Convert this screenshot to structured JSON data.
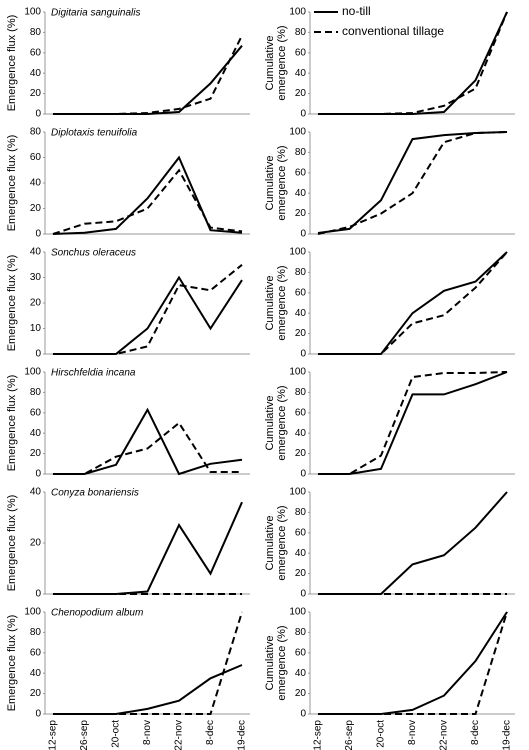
{
  "chart_data": [
    {
      "type": "line",
      "title": "Digitaria sanguinalis",
      "ylabel": [
        "Emergence flux (%)"
      ],
      "ylim": [
        0,
        100
      ],
      "yticks": [
        0,
        20,
        40,
        60,
        80,
        100
      ],
      "series": [
        {
          "style": "solid",
          "color": "#000000",
          "values": [
            0,
            0,
            0,
            0,
            2,
            30,
            67
          ]
        },
        {
          "style": "dashed",
          "color": "#000000",
          "values": [
            0,
            0,
            0,
            1,
            5,
            15,
            77
          ]
        }
      ]
    },
    {
      "type": "line",
      "ylabel": [
        "Cumulative",
        "emergence (%)"
      ],
      "ylim": [
        0,
        100
      ],
      "yticks": [
        0,
        20,
        40,
        60,
        80,
        100
      ],
      "legend": "top-left",
      "series": [
        {
          "name": "no-till",
          "style": "solid",
          "color": "#000000",
          "values": [
            0,
            0,
            0,
            0,
            2,
            33,
            100
          ]
        },
        {
          "name": "conventional tillage",
          "style": "dashed",
          "color": "#000000",
          "values": [
            0,
            0,
            0,
            1,
            8,
            25,
            100
          ]
        }
      ]
    },
    {
      "type": "line",
      "title": "Diplotaxis tenuifolia",
      "ylabel": [
        "Emergence flux (%)"
      ],
      "ylim": [
        0,
        80
      ],
      "yticks": [
        0,
        20,
        40,
        60,
        80
      ],
      "series": [
        {
          "style": "solid",
          "color": "#000000",
          "values": [
            0,
            1,
            4,
            28,
            60,
            3,
            1
          ]
        },
        {
          "style": "dashed",
          "color": "#000000",
          "values": [
            0,
            8,
            10,
            20,
            50,
            5,
            2
          ]
        }
      ]
    },
    {
      "type": "line",
      "ylabel": [
        "Cumulative",
        "emergence (%)"
      ],
      "ylim": [
        0,
        100
      ],
      "yticks": [
        0,
        20,
        40,
        60,
        80,
        100
      ],
      "series": [
        {
          "style": "solid",
          "color": "#000000",
          "values": [
            1,
            5,
            33,
            93,
            97,
            99,
            100
          ]
        },
        {
          "style": "dashed",
          "color": "#000000",
          "values": [
            0,
            7,
            20,
            40,
            90,
            99,
            100
          ]
        }
      ]
    },
    {
      "type": "line",
      "title": "Sonchus oleraceus",
      "ylabel": [
        "Emergence flux (%)"
      ],
      "ylim": [
        0,
        40
      ],
      "yticks": [
        0,
        10,
        20,
        30,
        40
      ],
      "series": [
        {
          "style": "solid",
          "color": "#000000",
          "values": [
            0,
            0,
            0,
            10,
            30,
            10,
            29
          ]
        },
        {
          "style": "dashed",
          "color": "#000000",
          "values": [
            0,
            0,
            0,
            3,
            27,
            25,
            35
          ]
        }
      ]
    },
    {
      "type": "line",
      "ylabel": [
        "Cumulative",
        "emergence (%)"
      ],
      "ylim": [
        0,
        100
      ],
      "yticks": [
        0,
        20,
        40,
        60,
        80,
        100
      ],
      "series": [
        {
          "style": "solid",
          "color": "#000000",
          "values": [
            0,
            0,
            0,
            40,
            62,
            71,
            100
          ]
        },
        {
          "style": "dashed",
          "color": "#000000",
          "values": [
            0,
            0,
            0,
            30,
            38,
            65,
            100
          ]
        }
      ]
    },
    {
      "type": "line",
      "title": "Hirschfeldia incana",
      "ylabel": [
        "Emergence flux (%)"
      ],
      "ylim": [
        0,
        100
      ],
      "yticks": [
        0,
        20,
        40,
        60,
        80,
        100
      ],
      "series": [
        {
          "style": "solid",
          "color": "#000000",
          "values": [
            0,
            0,
            9,
            63,
            0,
            10,
            14
          ]
        },
        {
          "style": "dashed",
          "color": "#000000",
          "values": [
            0,
            0,
            17,
            25,
            50,
            2,
            2
          ]
        }
      ]
    },
    {
      "type": "line",
      "ylabel": [
        "Cumulative",
        "emergence (%)"
      ],
      "ylim": [
        0,
        100
      ],
      "yticks": [
        0,
        20,
        40,
        60,
        80,
        100
      ],
      "series": [
        {
          "style": "solid",
          "color": "#000000",
          "values": [
            0,
            0,
            5,
            78,
            78,
            88,
            100
          ]
        },
        {
          "style": "dashed",
          "color": "#000000",
          "values": [
            0,
            0,
            18,
            95,
            99,
            99,
            100
          ]
        }
      ]
    },
    {
      "type": "line",
      "title": "Conyza bonariensis",
      "ylabel": [
        "Emergence flux (%)"
      ],
      "ylim": [
        0,
        40
      ],
      "yticks": [
        0,
        20,
        40
      ],
      "series": [
        {
          "style": "solid",
          "color": "#000000",
          "values": [
            0,
            0,
            0,
            1,
            27,
            8,
            36
          ]
        },
        {
          "style": "dashed",
          "color": "#000000",
          "values": [
            0,
            0,
            0,
            0,
            0,
            0,
            0
          ]
        }
      ]
    },
    {
      "type": "line",
      "ylabel": [
        "Cumulative",
        "emergence (%)"
      ],
      "ylim": [
        0,
        100
      ],
      "yticks": [
        0,
        20,
        40,
        60,
        80,
        100
      ],
      "series": [
        {
          "style": "solid",
          "color": "#000000",
          "values": [
            0,
            0,
            0,
            29,
            38,
            65,
            100
          ]
        },
        {
          "style": "dashed",
          "color": "#000000",
          "values": [
            0,
            0,
            0,
            0,
            0,
            0,
            0
          ]
        }
      ]
    },
    {
      "type": "line",
      "title": "Chenopodium album",
      "ylabel": [
        "Emergence flux (%)"
      ],
      "ylim": [
        0,
        100
      ],
      "yticks": [
        0,
        20,
        40,
        60,
        80,
        100
      ],
      "categories": [
        "12-sep",
        "26-sep",
        "20-oct",
        "8-nov",
        "22-nov",
        "8-dec",
        "19-dec"
      ],
      "series": [
        {
          "style": "solid",
          "color": "#000000",
          "values": [
            0,
            0,
            0,
            5,
            13,
            35,
            48
          ]
        },
        {
          "style": "dashed",
          "color": "#000000",
          "values": [
            0,
            0,
            0,
            0,
            0,
            0,
            100
          ]
        }
      ]
    },
    {
      "type": "line",
      "ylabel": [
        "Cumulative",
        "emergence (%)"
      ],
      "ylim": [
        0,
        100
      ],
      "yticks": [
        0,
        20,
        40,
        60,
        80,
        100
      ],
      "categories": [
        "12-sep",
        "26-sep",
        "20-oct",
        "8-nov",
        "22-nov",
        "8-dec",
        "19-dec"
      ],
      "series": [
        {
          "style": "solid",
          "color": "#000000",
          "values": [
            0,
            0,
            0,
            4,
            18,
            52,
            100
          ]
        },
        {
          "style": "dashed",
          "color": "#000000",
          "values": [
            0,
            0,
            0,
            0,
            0,
            0,
            100
          ]
        }
      ]
    }
  ]
}
